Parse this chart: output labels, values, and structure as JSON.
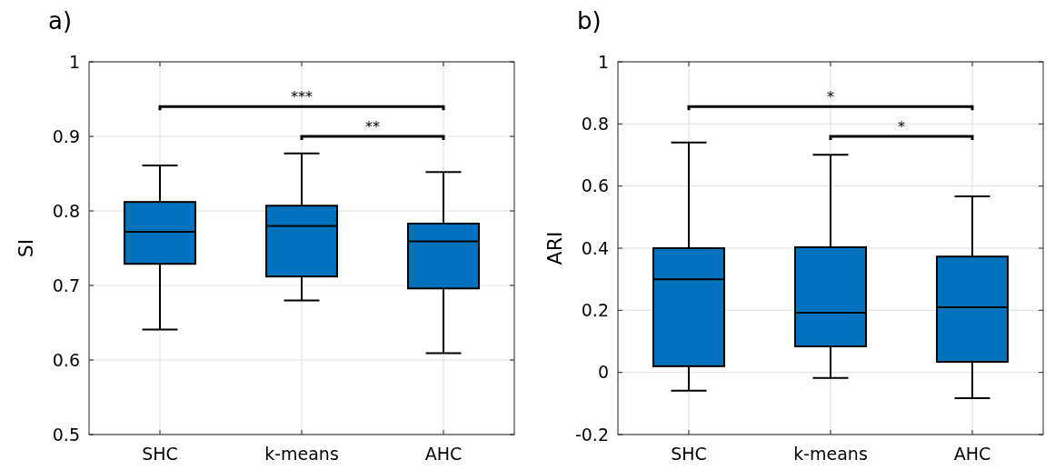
{
  "chart_data": [
    {
      "type": "box",
      "title": "a)",
      "ylabel": "SI",
      "categories": [
        "SHC",
        "k-means",
        "AHC"
      ],
      "color": "#0072bd",
      "ylim": [
        0.5,
        1
      ],
      "yticks": [
        0.5,
        0.6,
        0.7,
        0.8,
        0.9,
        1
      ],
      "grid": true,
      "boxes": [
        {
          "low": 0.641,
          "q1": 0.729,
          "median": 0.772,
          "q3": 0.812,
          "high": 0.861
        },
        {
          "low": 0.68,
          "q1": 0.712,
          "median": 0.78,
          "q3": 0.807,
          "high": 0.877
        },
        {
          "low": 0.609,
          "q1": 0.696,
          "median": 0.759,
          "q3": 0.783,
          "high": 0.852
        }
      ],
      "annotations": [
        "***",
        "**"
      ]
    },
    {
      "type": "box",
      "title": "b)",
      "ylabel": "ARI",
      "categories": [
        "SHC",
        "k-means",
        "AHC"
      ],
      "color": "#0072bd",
      "ylim": [
        -0.2,
        1
      ],
      "yticks": [
        -0.2,
        0,
        0.2,
        0.4,
        0.6,
        0.8,
        1
      ],
      "grid": true,
      "boxes": [
        {
          "low": -0.059,
          "q1": 0.02,
          "median": 0.3,
          "q3": 0.4,
          "high": 0.74
        },
        {
          "low": -0.018,
          "q1": 0.084,
          "median": 0.192,
          "q3": 0.403,
          "high": 0.701
        },
        {
          "low": -0.083,
          "q1": 0.034,
          "median": 0.21,
          "q3": 0.373,
          "high": 0.567
        }
      ],
      "annotations": [
        "*",
        "*"
      ]
    }
  ]
}
